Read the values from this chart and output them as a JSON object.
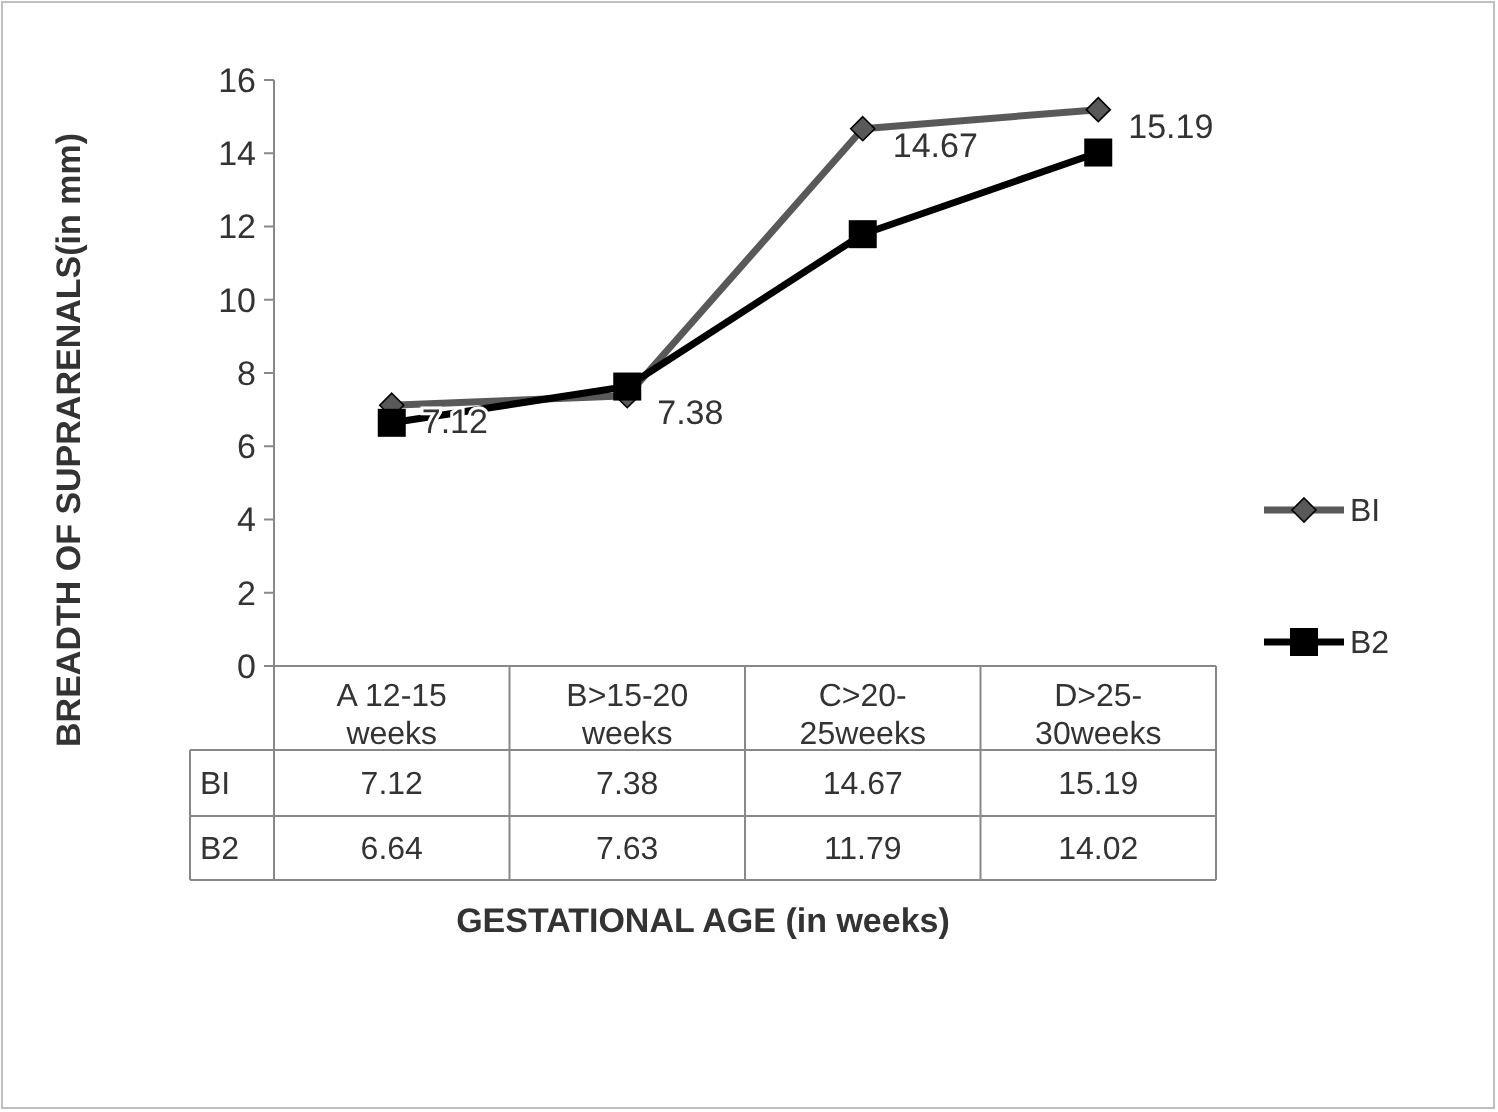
{
  "chart_data": {
    "type": "line",
    "xlabel": "GESTATIONAL AGE (in weeks)",
    "ylabel": "BREADTH OF SUPRARENALS(in mm)",
    "categories": [
      "A 12-15 weeks",
      "B>15-20 weeks",
      "C>20-25weeks",
      "D>25-30weeks"
    ],
    "series": [
      {
        "name": "BI",
        "color": "#595959",
        "marker": "diamond",
        "values": [
          7.12,
          7.38,
          14.67,
          15.19
        ]
      },
      {
        "name": "B2",
        "color": "#000000",
        "marker": "square",
        "values": [
          6.64,
          7.63,
          11.79,
          14.02
        ]
      }
    ],
    "annotations": [
      {
        "text": "7.12",
        "x": "A 12-15 weeks",
        "y": 7.12
      },
      {
        "text": "7.38",
        "x": "B>15-20 weeks",
        "y": 7.38
      },
      {
        "text": "14.67",
        "x": "C>20-25weeks",
        "y": 14.67
      },
      {
        "text": "15.19",
        "x": "D>25-30weeks",
        "y": 15.19
      }
    ],
    "ylim": [
      0,
      16
    ],
    "yticks": [
      0,
      2,
      4,
      6,
      8,
      10,
      12,
      14,
      16
    ],
    "grid": false,
    "legend": "right",
    "data_labels": true,
    "line_style": "solid"
  }
}
